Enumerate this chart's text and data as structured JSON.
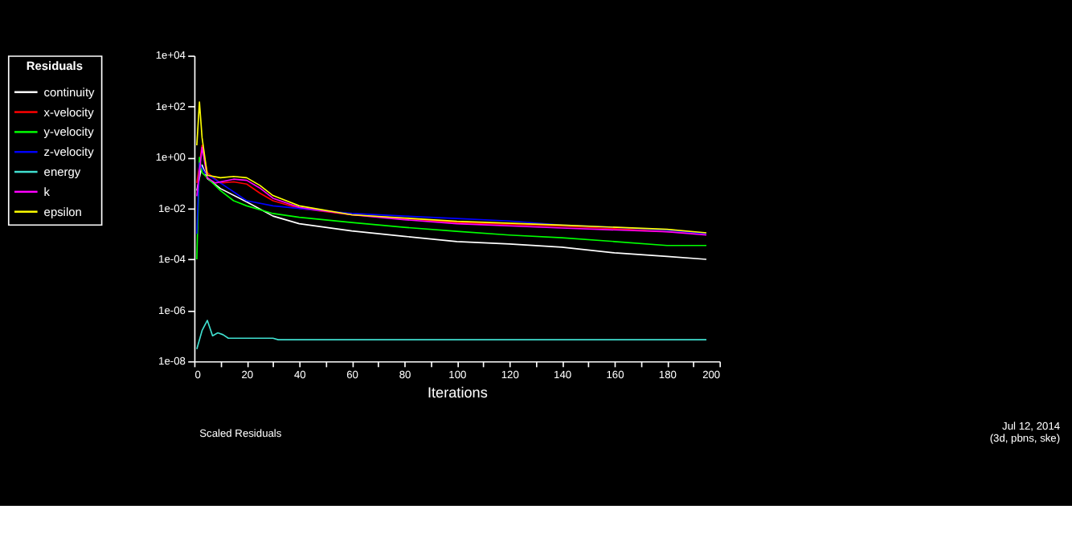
{
  "chart_data": {
    "type": "line",
    "title": "Scaled Residuals",
    "xlabel": "Iterations",
    "legend_title": "Residuals",
    "annotations": [
      "Jul 12, 2014",
      "(3d, pbns, ske)"
    ],
    "xlim": [
      0,
      200
    ],
    "xticks": [
      0,
      {
        "value": 10,
        "label": null
      },
      20,
      {
        "value": 30,
        "label": null
      },
      40,
      {
        "value": 50,
        "label": null
      },
      60,
      {
        "value": 70,
        "label": null
      },
      80,
      {
        "value": 90,
        "label": null
      },
      100,
      {
        "value": 110,
        "label": null
      },
      120,
      {
        "value": 130,
        "label": null
      },
      140,
      {
        "value": 150,
        "label": null
      },
      160,
      {
        "value": 170,
        "label": null
      },
      180,
      {
        "value": 190,
        "label": null
      },
      200
    ],
    "ylim": [
      1e-08,
      10000
    ],
    "yticks": [
      {
        "value": 10000,
        "label": "1e+04"
      },
      {
        "value": 100,
        "label": "1e+02"
      },
      {
        "value": 1,
        "label": "1e+00"
      },
      {
        "value": 0.01,
        "label": "1e-02"
      },
      {
        "value": 0.0001,
        "label": "1e-04"
      },
      {
        "value": 1e-06,
        "label": "1e-06"
      },
      {
        "value": 1e-08,
        "label": "1e-08"
      }
    ],
    "log": true,
    "grid": false,
    "legend": "top left",
    "marker": "none",
    "line_style": "solid",
    "series": [
      {
        "name": "continuity",
        "color": "#ffffff",
        "x": [
          1,
          3,
          5,
          10,
          20,
          30,
          40,
          60,
          80,
          100,
          120,
          140,
          160,
          180,
          195
        ],
        "values": [
          0.05,
          0.5,
          0.15,
          0.06,
          0.018,
          0.005,
          0.0025,
          0.0013,
          0.0008,
          0.0005,
          0.0004,
          0.0003,
          0.00018,
          0.00013,
          0.0001
        ]
      },
      {
        "name": "x-velocity",
        "color": "#ff0000",
        "x": [
          1,
          3,
          5,
          10,
          15,
          20,
          25,
          30,
          40,
          60,
          80,
          100,
          140,
          160,
          195
        ],
        "values": [
          0.1,
          3,
          0.25,
          0.1,
          0.11,
          0.09,
          0.04,
          0.02,
          0.01,
          0.0056,
          0.004,
          0.0028,
          0.002,
          0.0016,
          0.001
        ]
      },
      {
        "name": "y-velocity",
        "color": "#00ff00",
        "x": [
          1,
          2,
          3,
          5,
          10,
          15,
          20,
          30,
          40,
          60,
          80,
          100,
          120,
          140,
          160,
          180,
          195
        ],
        "values": [
          0.0001,
          1,
          0.25,
          0.16,
          0.05,
          0.02,
          0.0126,
          0.0063,
          0.0045,
          0.0028,
          0.0018,
          0.00126,
          0.0009,
          0.0007,
          0.0005,
          0.00035,
          0.00035
        ]
      },
      {
        "name": "z-velocity",
        "color": "#0000ff",
        "x": [
          1,
          2,
          4,
          10,
          20,
          30,
          40,
          60,
          80,
          100,
          120,
          140,
          160,
          180,
          195
        ],
        "values": [
          0.001,
          0.6,
          0.25,
          0.1,
          0.02,
          0.0126,
          0.01,
          0.0063,
          0.005,
          0.004,
          0.0032,
          0.0022,
          0.0018,
          0.0014,
          0.001
        ]
      },
      {
        "name": "energy",
        "color": "#40e0d0",
        "x": [
          1,
          3,
          5,
          7,
          9,
          11,
          13,
          30,
          32,
          195
        ],
        "values": [
          3e-08,
          1.6e-07,
          4e-07,
          1e-07,
          1.3e-07,
          1.1e-07,
          8e-08,
          8e-08,
          7e-08,
          7e-08
        ]
      },
      {
        "name": "k",
        "color": "#ff00ff",
        "x": [
          1,
          3,
          5,
          8,
          15,
          20,
          25,
          30,
          40,
          60,
          80,
          100,
          140,
          180,
          195
        ],
        "values": [
          0.03,
          2.5,
          0.16,
          0.1,
          0.14,
          0.126,
          0.063,
          0.025,
          0.011,
          0.0056,
          0.0036,
          0.0025,
          0.0017,
          0.0012,
          0.0009
        ]
      },
      {
        "name": "epsilon",
        "color": "#ffff00",
        "x": [
          1,
          2,
          3,
          5,
          10,
          15,
          20,
          25,
          30,
          40,
          60,
          80,
          100,
          140,
          180,
          195
        ],
        "values": [
          3,
          150,
          6,
          0.2,
          0.16,
          0.18,
          0.16,
          0.08,
          0.032,
          0.0126,
          0.0056,
          0.0042,
          0.0031,
          0.0022,
          0.0015,
          0.0011
        ]
      }
    ]
  }
}
